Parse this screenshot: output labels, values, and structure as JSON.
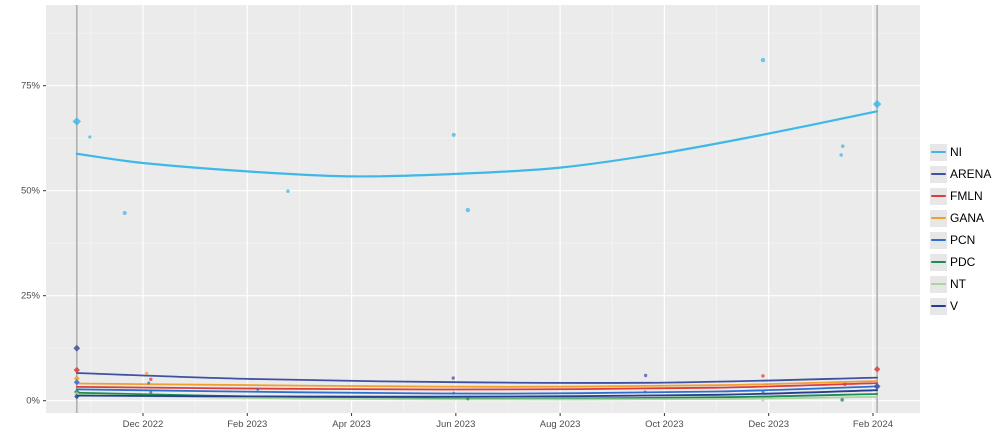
{
  "chart_data": {
    "type": "line",
    "title": "",
    "description": "Opinion polling trend lines with scatter points for Salvadoran political parties, Nov 2022 - Feb 2024",
    "x_axis": {
      "tick_labels": [
        "Dec 2022",
        "Feb 2023",
        "Apr 2023",
        "Jun 2023",
        "Aug 2023",
        "Oct 2023",
        "Dec 2023",
        "Feb 2024"
      ],
      "tick_months": [
        0,
        2,
        4,
        6,
        8,
        10,
        12,
        14
      ],
      "minor_months": [
        -1,
        1,
        3,
        5,
        7,
        9,
        11,
        13
      ],
      "range_months": [
        -1.86,
        14.9
      ]
    },
    "y_axis": {
      "tick_labels": [
        "0%",
        "25%",
        "50%",
        "75%"
      ],
      "tick_values": [
        0,
        25,
        50,
        75
      ],
      "minor_values": [
        12.5,
        37.5,
        62.5,
        87.5
      ],
      "range_pct": [
        -2.9,
        94.2
      ]
    },
    "event_lines_months": [
      -1.27,
      14.08
    ],
    "grid": true,
    "legend_position": "right",
    "series": [
      {
        "name": "NI",
        "color": "#3fb8e8",
        "line_width": 2.2,
        "trend": [
          [
            -1.27,
            58.8
          ],
          [
            0,
            56.6
          ],
          [
            2,
            54.6
          ],
          [
            4,
            53.4
          ],
          [
            6,
            54.0
          ],
          [
            8,
            55.5
          ],
          [
            10,
            59.0
          ],
          [
            12,
            63.6
          ],
          [
            14.08,
            68.9
          ]
        ],
        "results": [
          [
            -1.27,
            66.5,
            4.2
          ],
          [
            14.08,
            70.6,
            4.2
          ]
        ],
        "polls": [
          [
            -1.02,
            62.8,
            1.6
          ],
          [
            -0.35,
            44.7,
            2
          ],
          [
            2.78,
            49.9,
            1.8
          ],
          [
            5.96,
            63.3,
            2
          ],
          [
            6.23,
            45.4,
            2.2
          ],
          [
            11.89,
            81.1,
            2.2
          ],
          [
            13.39,
            58.5,
            1.8
          ],
          [
            13.42,
            60.6,
            1.8
          ]
        ]
      },
      {
        "name": "ARENA",
        "color": "#3f51a3",
        "line_width": 1.8,
        "trend": [
          [
            -1.27,
            6.6
          ],
          [
            2,
            5.2
          ],
          [
            6,
            4.4
          ],
          [
            10,
            4.3
          ],
          [
            14.08,
            5.5
          ]
        ],
        "results": [
          [
            -1.27,
            12.5,
            3.4
          ],
          [
            14.08,
            3.4,
            3.4
          ]
        ],
        "polls": [
          [
            5.95,
            5.4,
            1.7
          ],
          [
            9.64,
            6.0,
            1.7
          ]
        ]
      },
      {
        "name": "FMLN",
        "color": "#dd3c3c",
        "line_width": 1.8,
        "trend": [
          [
            -1.27,
            3.3
          ],
          [
            3,
            2.8
          ],
          [
            7,
            2.7
          ],
          [
            11,
            3.1
          ],
          [
            14.08,
            4.2
          ]
        ],
        "results": [
          [
            -1.27,
            7.3,
            3.2
          ],
          [
            14.08,
            7.5,
            3.2
          ]
        ],
        "polls": [
          [
            0.15,
            5.1,
            1.7
          ],
          [
            11.89,
            5.9,
            1.7
          ],
          [
            13.46,
            3.9,
            1.7
          ]
        ]
      },
      {
        "name": "GANA",
        "color": "#f0a02f",
        "line_width": 1.8,
        "trend": [
          [
            -1.27,
            4.1
          ],
          [
            3,
            3.6
          ],
          [
            7,
            3.3
          ],
          [
            11,
            3.7
          ],
          [
            14.08,
            4.7
          ]
        ],
        "results": [
          [
            -1.27,
            5.3,
            3.0
          ]
        ],
        "polls": [
          [
            0.07,
            6.5,
            1.6
          ]
        ]
      },
      {
        "name": "PCN",
        "color": "#2e6fce",
        "line_width": 1.8,
        "trend": [
          [
            -1.27,
            2.7
          ],
          [
            3,
            2.0
          ],
          [
            7,
            1.7
          ],
          [
            11,
            2.2
          ],
          [
            14.08,
            3.4
          ]
        ],
        "results": [
          [
            -1.27,
            4.4,
            3.0
          ]
        ],
        "polls": [
          [
            0.11,
            4.2,
            1.5
          ],
          [
            2.2,
            2.7,
            1.5
          ],
          [
            5.96,
            1.8,
            1.5
          ],
          [
            9.63,
            2.1,
            1.5
          ],
          [
            11.89,
            2.1,
            1.5
          ]
        ]
      },
      {
        "name": "PDC",
        "color": "#1e8a56",
        "line_width": 1.8,
        "trend": [
          [
            -1.27,
            1.9
          ],
          [
            3,
            0.8
          ],
          [
            7,
            0.5
          ],
          [
            11,
            0.8
          ],
          [
            14.08,
            1.6
          ]
        ],
        "results": [
          [
            -1.27,
            2.1,
            2.8
          ]
        ],
        "polls": [
          [
            0.15,
            2.0,
            1.5
          ],
          [
            6.23,
            0.4,
            1.5
          ],
          [
            13.41,
            0.2,
            1.8
          ]
        ]
      },
      {
        "name": "NT",
        "color": "#a9d49f",
        "line_width": 1.8,
        "trend": [
          [
            -1.27,
            1.4
          ],
          [
            3,
            0.5
          ],
          [
            7,
            0.3
          ],
          [
            11,
            0.4
          ],
          [
            14.08,
            0.9
          ]
        ],
        "results": [
          [
            -1.27,
            1.6,
            2.6
          ]
        ],
        "polls": [
          [
            11.89,
            0.1,
            1.4
          ]
        ]
      },
      {
        "name": "V",
        "color": "#243f8f",
        "line_width": 1.8,
        "trend": [
          [
            -1.27,
            1.2
          ],
          [
            3,
            1.0
          ],
          [
            7,
            1.0
          ],
          [
            11,
            1.4
          ],
          [
            14.08,
            2.5
          ]
        ],
        "results": [
          [
            -1.27,
            1.0,
            2.6
          ]
        ],
        "polls": []
      }
    ]
  },
  "colors": {
    "page_bg": "#ffffff",
    "panel_bg": "#ebebeb",
    "grid_major": "#ffffff",
    "grid_minor": "#f5f5f5",
    "event_line": "#b0b0b0",
    "tick_text": "#4d4d4d",
    "tick_mark": "#333333",
    "legend_key_bg": "#e7e7e7",
    "legend_text": "#000000"
  }
}
